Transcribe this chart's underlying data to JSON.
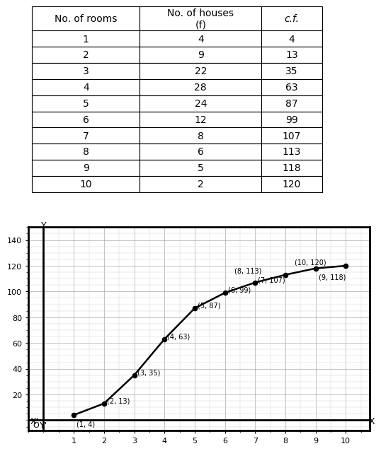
{
  "table_headers": [
    "No. of rooms",
    "No. of houses\n(f)",
    "c.f."
  ],
  "table_data": [
    [
      1,
      4,
      4
    ],
    [
      2,
      9,
      13
    ],
    [
      3,
      22,
      35
    ],
    [
      4,
      28,
      63
    ],
    [
      5,
      24,
      87
    ],
    [
      6,
      12,
      99
    ],
    [
      7,
      8,
      107
    ],
    [
      8,
      6,
      113
    ],
    [
      9,
      5,
      118
    ],
    [
      10,
      2,
      120
    ]
  ],
  "x_data": [
    1,
    2,
    3,
    4,
    5,
    6,
    7,
    8,
    9,
    10
  ],
  "y_data": [
    4,
    13,
    35,
    63,
    87,
    99,
    107,
    113,
    118,
    120
  ],
  "point_labels": [
    "(1, 4)",
    "(2, 13)",
    "(3, 35)",
    "(4, 63)",
    "(5, 87)",
    "(6, 99)",
    "(7, 107)",
    "(8, 113)",
    "(9, 118)",
    "(10, 120)"
  ],
  "xlim": [
    -0.5,
    10.8
  ],
  "ylim": [
    -8,
    150
  ],
  "xticks": [
    1,
    2,
    3,
    4,
    5,
    6,
    7,
    8,
    9,
    10
  ],
  "yticks": [
    20,
    40,
    60,
    80,
    100,
    120,
    140
  ],
  "bg_color": "#ffffff",
  "line_color": "#000000",
  "dot_color": "#000000",
  "grid_major_color": "#aaaaaa",
  "grid_minor_color": "#cccccc",
  "font_size_point": 7,
  "font_size_axis": 9,
  "font_size_tick": 8,
  "font_size_table": 10,
  "font_size_table_header": 10
}
